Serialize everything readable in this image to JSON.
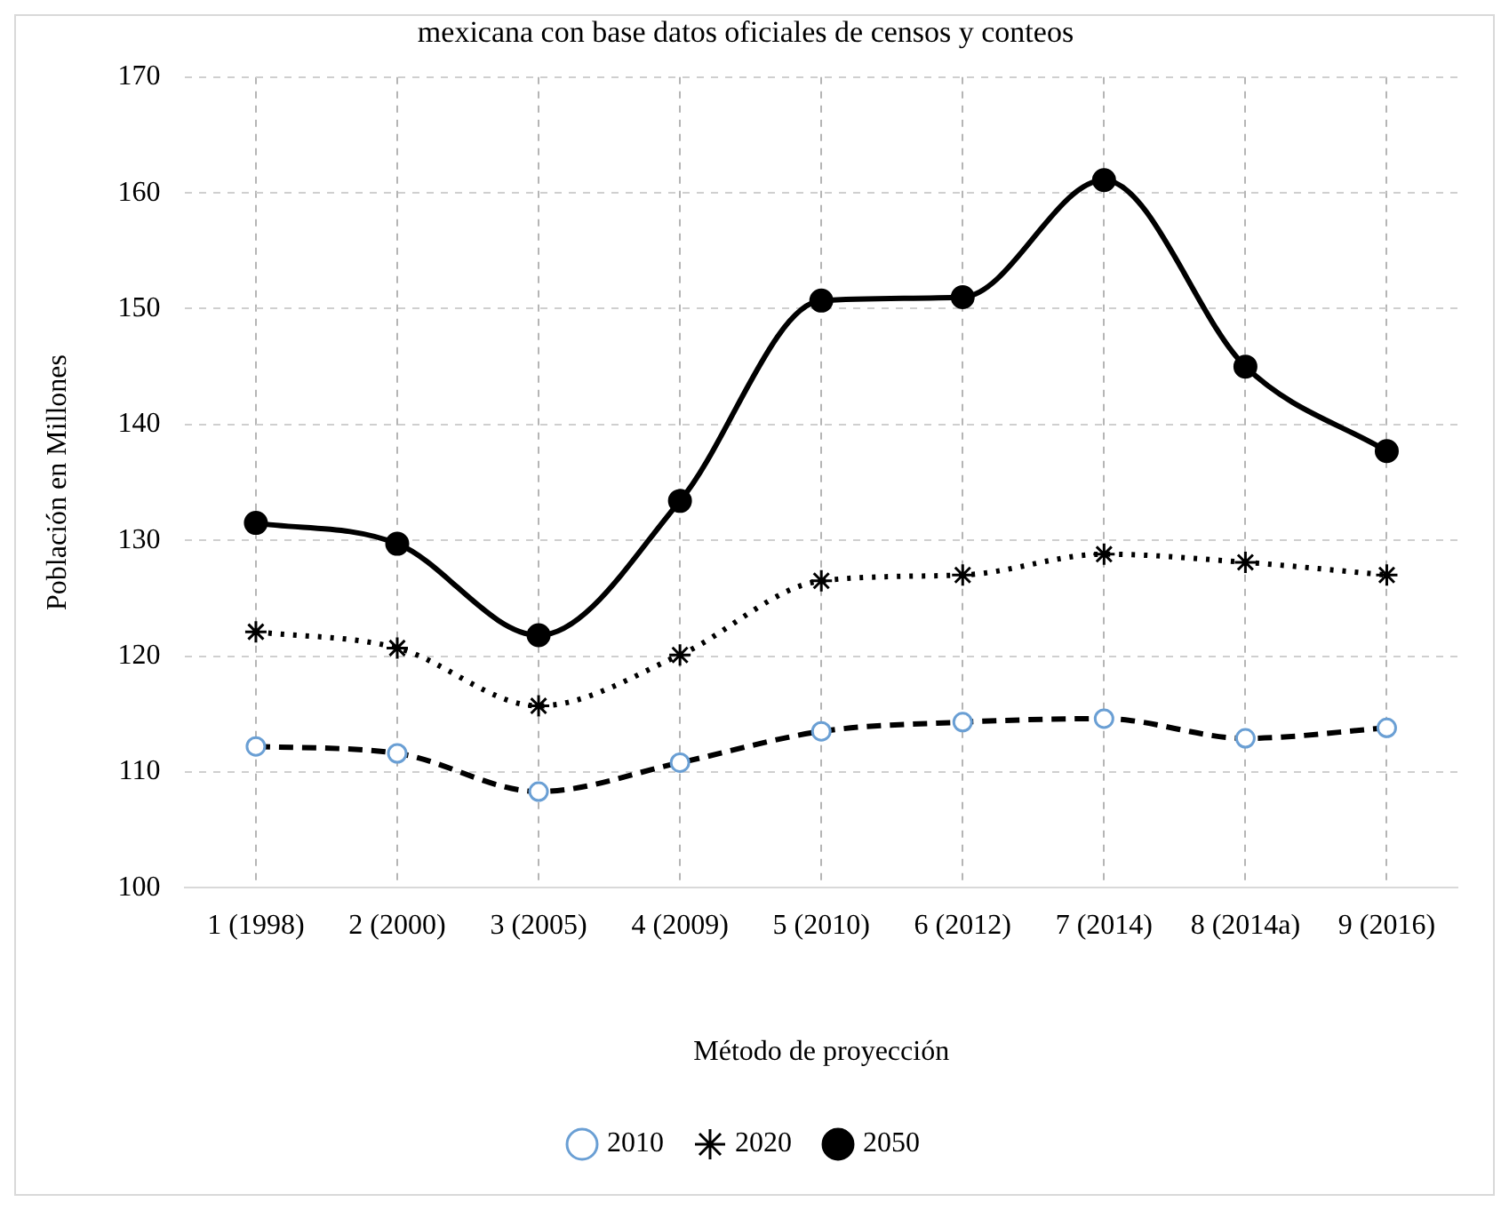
{
  "chart_data": {
    "type": "line",
    "title": "mexicana con base datos oficiales de censos y conteos",
    "xlabel": "Método de proyección",
    "ylabel": "Población en Millones",
    "categories": [
      "1 (1998)",
      "2 (2000)",
      "3 (2005)",
      "4 (2009)",
      "5 (2010)",
      "6 (2012)",
      "7 (2014)",
      "8 (2014a)",
      "9 (2016)"
    ],
    "series": [
      {
        "name": "2010",
        "color": "#000000",
        "marker": "circle",
        "line_style": "dashed",
        "values": [
          112.2,
          111.6,
          108.3,
          110.8,
          113.5,
          114.3,
          114.6,
          112.9,
          113.8
        ]
      },
      {
        "name": "2020",
        "color": "#000000",
        "marker": "cross",
        "line_style": "dotted",
        "values": [
          122.1,
          120.7,
          115.7,
          120.1,
          126.5,
          127.0,
          128.8,
          128.1,
          127.0
        ]
      },
      {
        "name": "2050",
        "color": "#000000",
        "marker": "circle",
        "line_style": "solid",
        "values": [
          131.5,
          129.7,
          121.8,
          133.4,
          150.7,
          151.0,
          161.1,
          145.0,
          137.7
        ]
      }
    ],
    "ylim": [
      100,
      170
    ],
    "yticks": [
      100,
      110,
      120,
      130,
      140,
      150,
      160,
      170
    ],
    "grid": true,
    "legend": "bottom"
  }
}
